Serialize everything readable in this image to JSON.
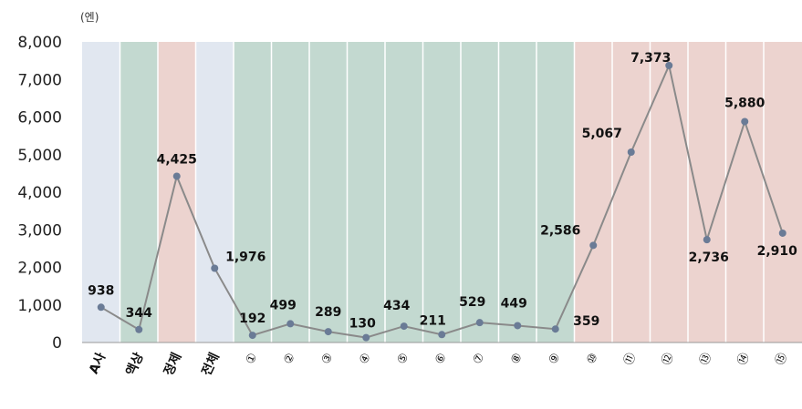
{
  "chart_data": {
    "type": "line",
    "unit_label": "(엔)",
    "categories": [
      "A사",
      "액상",
      "정제",
      "전체",
      "①",
      "②",
      "③",
      "④",
      "⑤",
      "⑥",
      "⑦",
      "⑧",
      "⑨",
      "⑩",
      "⑪",
      "⑫",
      "⑬",
      "⑭",
      "⑮"
    ],
    "values": [
      938,
      344,
      4425,
      1976,
      192,
      499,
      289,
      130,
      434,
      211,
      529,
      449,
      359,
      2586,
      5067,
      7373,
      2736,
      5880,
      2910
    ],
    "value_labels": [
      "938",
      "344",
      "4,425",
      "1,976",
      "192",
      "499",
      "289",
      "130",
      "434",
      "211",
      "529",
      "449",
      "359",
      "2,586",
      "5,067",
      "7,373",
      "2,736",
      "5,880",
      "2,910"
    ],
    "yticks": [
      "0",
      "1,000",
      "2,000",
      "3,000",
      "4,000",
      "5,000",
      "6,000",
      "7,000",
      "8,000"
    ],
    "ylim": [
      0,
      8000
    ],
    "band_colors": [
      "#e1e7f0",
      "#c3d9d0",
      "#ecd3cf",
      "#e1e7f0",
      "#c3d9d0",
      "#c3d9d0",
      "#c3d9d0",
      "#c3d9d0",
      "#c3d9d0",
      "#c3d9d0",
      "#c3d9d0",
      "#c3d9d0",
      "#c3d9d0",
      "#ecd3cf",
      "#ecd3cf",
      "#ecd3cf",
      "#ecd3cf",
      "#ecd3cf",
      "#ecd3cf"
    ],
    "line_color": "#8a8a8a",
    "marker_color": "#6a7b96",
    "grid": false
  }
}
